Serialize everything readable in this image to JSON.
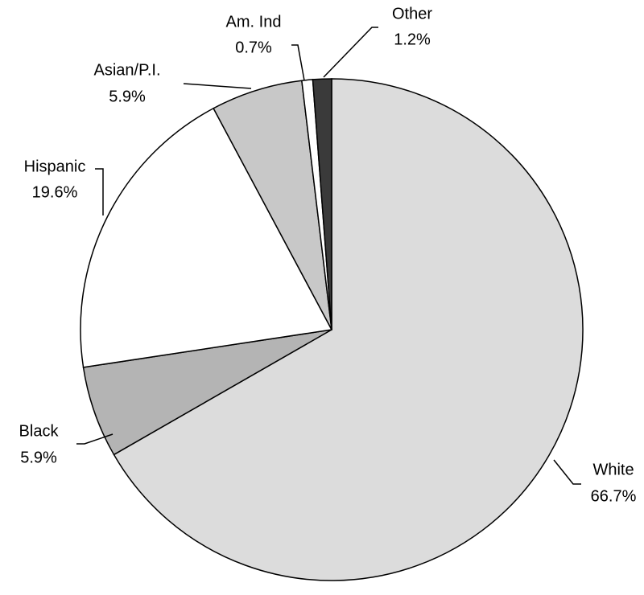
{
  "chart_data": {
    "type": "pie",
    "categories": [
      "White",
      "Black",
      "Hispanic",
      "Asian/P.I.",
      "Am. Ind",
      "Other"
    ],
    "values": [
      66.7,
      5.9,
      19.6,
      5.9,
      0.7,
      1.2
    ],
    "value_labels": [
      "66.7%",
      "5.9%",
      "19.6%",
      "5.9%",
      "0.7%",
      "1.2%"
    ],
    "colors": [
      "#dcdcdc",
      "#b4b4b4",
      "#ffffff",
      "#c8c8c8",
      "#ffffff",
      "#3a3a3a"
    ]
  }
}
